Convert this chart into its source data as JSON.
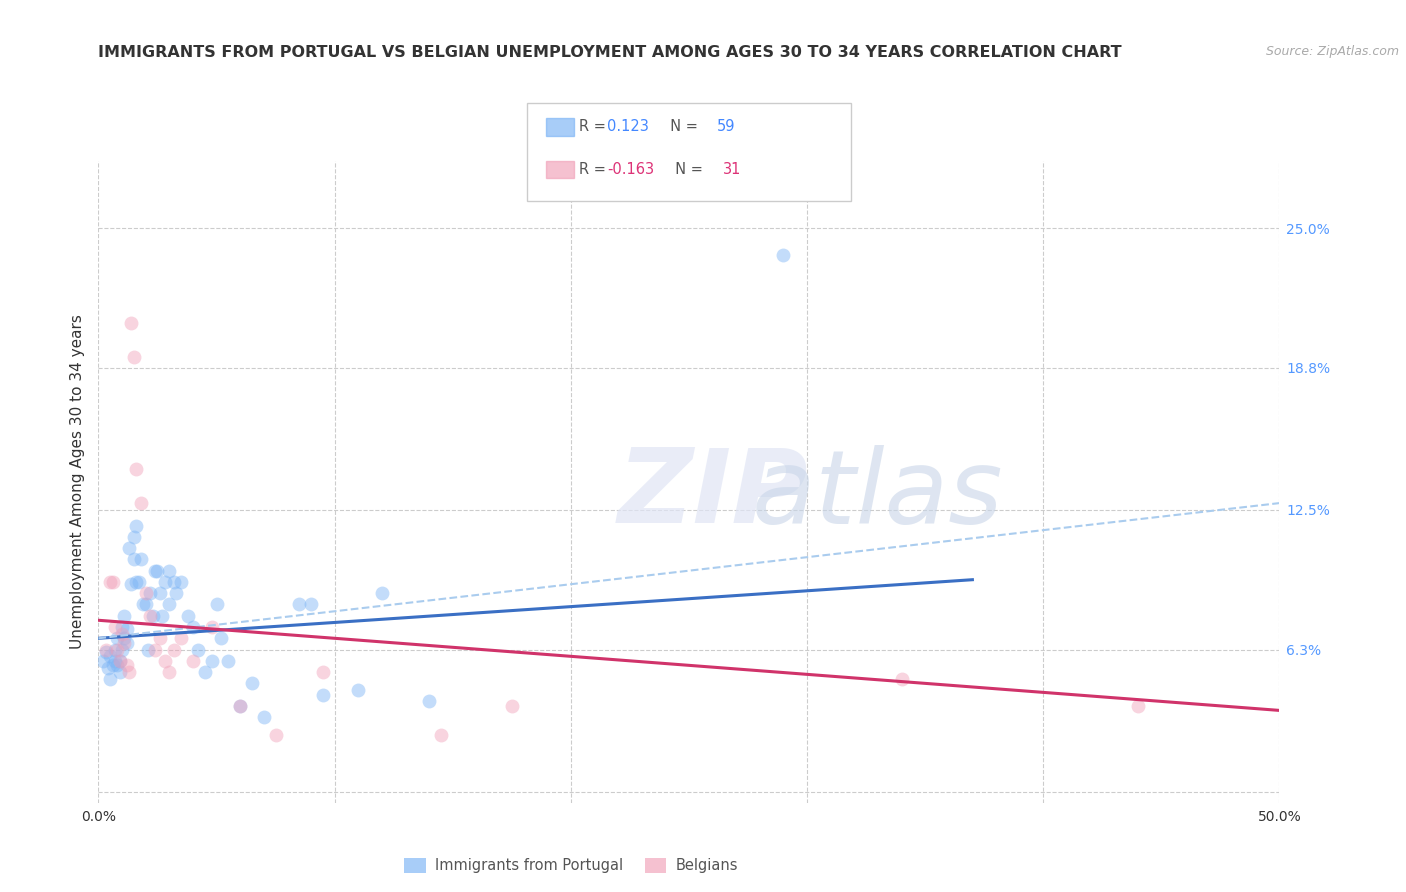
{
  "title": "IMMIGRANTS FROM PORTUGAL VS BELGIAN UNEMPLOYMENT AMONG AGES 30 TO 34 YEARS CORRELATION CHART",
  "source": "Source: ZipAtlas.com",
  "ylabel": "Unemployment Among Ages 30 to 34 years",
  "xlim": [
    0.0,
    0.5
  ],
  "ylim": [
    -0.005,
    0.28
  ],
  "xtick_vals": [
    0.0,
    0.1,
    0.2,
    0.3,
    0.4,
    0.5
  ],
  "xtick_labels_bottom": [
    "0.0%",
    "",
    "",
    "",
    "",
    "50.0%"
  ],
  "ytick_vals": [
    0.0,
    0.063,
    0.125,
    0.188,
    0.25
  ],
  "ytick_labels_right": [
    "",
    "6.3%",
    "12.5%",
    "18.8%",
    "25.0%"
  ],
  "grid_color": "#cccccc",
  "background_color": "#ffffff",
  "series": [
    {
      "name": "Immigrants from Portugal",
      "R": 0.123,
      "N": 59,
      "color": "#7ab3f5",
      "trend_color": "#3a6fc4",
      "x": [
        0.002,
        0.003,
        0.004,
        0.005,
        0.005,
        0.006,
        0.007,
        0.007,
        0.008,
        0.008,
        0.009,
        0.009,
        0.01,
        0.01,
        0.011,
        0.011,
        0.012,
        0.012,
        0.013,
        0.014,
        0.015,
        0.015,
        0.016,
        0.016,
        0.017,
        0.018,
        0.019,
        0.02,
        0.021,
        0.022,
        0.023,
        0.024,
        0.025,
        0.026,
        0.027,
        0.028,
        0.03,
        0.03,
        0.032,
        0.033,
        0.035,
        0.038,
        0.04,
        0.042,
        0.045,
        0.048,
        0.05,
        0.052,
        0.055,
        0.06,
        0.065,
        0.07,
        0.085,
        0.09,
        0.095,
        0.11,
        0.12,
        0.14,
        0.29
      ],
      "y": [
        0.058,
        0.062,
        0.055,
        0.06,
        0.05,
        0.056,
        0.063,
        0.058,
        0.068,
        0.056,
        0.053,
        0.058,
        0.073,
        0.063,
        0.078,
        0.068,
        0.066,
        0.072,
        0.108,
        0.092,
        0.113,
        0.103,
        0.118,
        0.093,
        0.093,
        0.103,
        0.083,
        0.083,
        0.063,
        0.088,
        0.078,
        0.098,
        0.098,
        0.088,
        0.078,
        0.093,
        0.098,
        0.083,
        0.093,
        0.088,
        0.093,
        0.078,
        0.073,
        0.063,
        0.053,
        0.058,
        0.083,
        0.068,
        0.058,
        0.038,
        0.048,
        0.033,
        0.083,
        0.083,
        0.043,
        0.045,
        0.088,
        0.04,
        0.238
      ]
    },
    {
      "name": "Belgians",
      "R": -0.163,
      "N": 31,
      "color": "#f0a0b8",
      "trend_color": "#d0336a",
      "x": [
        0.003,
        0.005,
        0.006,
        0.007,
        0.008,
        0.009,
        0.01,
        0.011,
        0.012,
        0.013,
        0.014,
        0.015,
        0.016,
        0.018,
        0.02,
        0.022,
        0.024,
        0.026,
        0.028,
        0.03,
        0.032,
        0.035,
        0.04,
        0.048,
        0.06,
        0.075,
        0.095,
        0.145,
        0.175,
        0.34,
        0.44
      ],
      "y": [
        0.063,
        0.093,
        0.093,
        0.073,
        0.063,
        0.058,
        0.07,
        0.066,
        0.056,
        0.053,
        0.208,
        0.193,
        0.143,
        0.128,
        0.088,
        0.078,
        0.063,
        0.068,
        0.058,
        0.053,
        0.063,
        0.068,
        0.058,
        0.073,
        0.038,
        0.025,
        0.053,
        0.025,
        0.038,
        0.05,
        0.038
      ]
    }
  ],
  "trend_lines": [
    {
      "x_start": 0.0,
      "x_end": 0.37,
      "y_start": 0.068,
      "y_end": 0.094,
      "color": "#3a6fc4",
      "dash": "solid",
      "linewidth": 2.2
    },
    {
      "x_start": 0.0,
      "x_end": 0.5,
      "y_start": 0.068,
      "y_end": 0.128,
      "color": "#aaccee",
      "dash": "dashed",
      "linewidth": 1.5
    },
    {
      "x_start": 0.0,
      "x_end": 0.5,
      "y_start": 0.076,
      "y_end": 0.036,
      "color": "#d0336a",
      "dash": "solid",
      "linewidth": 2.2
    }
  ],
  "legend_entries": [
    {
      "r_val": "0.123",
      "n_val": "59",
      "color": "#7ab3f5",
      "r_color": "#4488ff",
      "n_color": "#4488ff"
    },
    {
      "r_val": "-0.163",
      "n_val": "31",
      "color": "#f0a0b8",
      "r_color": "#dd3377",
      "n_color": "#dd3377"
    }
  ],
  "title_fontsize": 11.5,
  "axis_label_fontsize": 11,
  "tick_fontsize": 10,
  "source_fontsize": 9,
  "marker_size": 100,
  "marker_alpha": 0.45
}
